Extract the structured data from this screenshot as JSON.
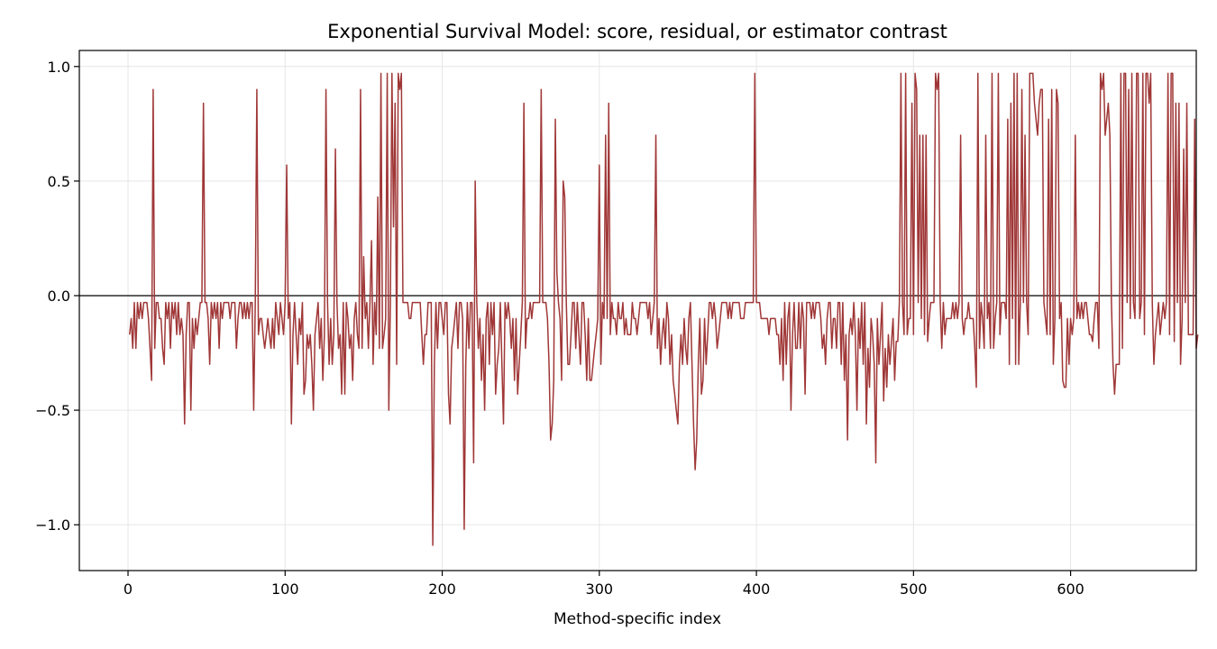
{
  "chart_data": {
    "type": "line",
    "title": "Exponential Survival Model: score, residual, or estimator contrast",
    "xlabel": "Method-specific index",
    "ylabel": "",
    "xlim": [
      -31,
      680
    ],
    "ylim": [
      -1.2,
      1.07
    ],
    "xticks": [
      0,
      100,
      200,
      300,
      400,
      500,
      600
    ],
    "xtick_labels": [
      "0",
      "100",
      "200",
      "300",
      "400",
      "500",
      "600"
    ],
    "yticks": [
      -1.0,
      -0.5,
      0.0,
      0.5,
      1.0
    ],
    "ytick_labels": [
      "−1.0",
      "−0.5",
      "0.0",
      "0.5",
      "1.0"
    ],
    "grid": true,
    "reference_line_y": 0.0,
    "line_color": "#a03737",
    "series": [
      {
        "x_start": 1,
        "values": [
          -0.17,
          -0.1,
          -0.23,
          -0.03,
          -0.23,
          -0.03,
          -0.1,
          -0.03,
          -0.1,
          -0.03,
          -0.03,
          -0.03,
          -0.1,
          -0.23,
          -0.37,
          0.9,
          -0.23,
          -0.03,
          -0.03,
          -0.1,
          -0.1,
          -0.23,
          -0.3,
          -0.03,
          -0.1,
          -0.03,
          -0.23,
          -0.03,
          -0.1,
          -0.03,
          -0.17,
          -0.03,
          -0.17,
          -0.1,
          -0.17,
          -0.56,
          -0.17,
          -0.03,
          -0.03,
          -0.5,
          -0.1,
          -0.23,
          -0.1,
          -0.17,
          -0.1,
          -0.03,
          -0.03,
          0.84,
          -0.03,
          -0.03,
          -0.1,
          -0.3,
          -0.03,
          -0.1,
          -0.03,
          -0.1,
          -0.03,
          -0.23,
          -0.03,
          -0.1,
          -0.03,
          -0.03,
          -0.03,
          -0.03,
          -0.1,
          -0.03,
          -0.03,
          -0.03,
          -0.23,
          -0.1,
          -0.03,
          -0.03,
          -0.1,
          -0.03,
          -0.1,
          -0.03,
          -0.1,
          -0.03,
          -0.03,
          -0.5,
          -0.03,
          0.9,
          -0.17,
          -0.1,
          -0.1,
          -0.17,
          -0.23,
          -0.17,
          -0.1,
          -0.17,
          -0.23,
          -0.1,
          -0.23,
          -0.03,
          -0.1,
          -0.17,
          -0.03,
          -0.1,
          -0.17,
          -0.03,
          0.57,
          -0.1,
          -0.03,
          -0.56,
          -0.17,
          -0.03,
          -0.17,
          -0.3,
          -0.1,
          -0.17,
          -0.03,
          -0.43,
          -0.37,
          -0.17,
          -0.23,
          -0.17,
          -0.3,
          -0.5,
          -0.17,
          -0.1,
          -0.03,
          -0.23,
          -0.1,
          -0.37,
          -0.17,
          0.9,
          -0.03,
          -0.3,
          -0.1,
          -0.3,
          -0.17,
          0.64,
          -0.03,
          -0.23,
          -0.17,
          -0.43,
          -0.03,
          -0.43,
          -0.03,
          -0.1,
          -0.23,
          -0.17,
          -0.37,
          -0.1,
          -0.03,
          -0.17,
          -0.23,
          0.9,
          -0.23,
          0.17,
          -0.1,
          -0.03,
          -0.23,
          -0.03,
          0.24,
          -0.3,
          -0.03,
          -0.17,
          0.43,
          -0.23,
          0.97,
          -0.23,
          -0.17,
          -0.1,
          0.97,
          -0.5,
          -0.03,
          0.97,
          0.3,
          0.84,
          -0.3,
          0.97,
          0.9,
          0.97,
          -0.03,
          -0.03,
          -0.03,
          -0.03,
          -0.1,
          -0.1,
          -0.03,
          -0.03,
          -0.03,
          -0.03,
          -0.03,
          -0.03,
          -0.17,
          -0.3,
          -0.17,
          -0.17,
          -0.03,
          -0.03,
          -0.03,
          -1.09,
          -0.3,
          -0.03,
          -0.23,
          -0.03,
          -0.03,
          -0.1,
          -0.17,
          -0.03,
          -0.03,
          -0.43,
          -0.56,
          -0.23,
          -0.17,
          -0.1,
          -0.03,
          -0.23,
          -0.03,
          -0.03,
          -0.1,
          -1.02,
          -0.3,
          -0.03,
          -0.23,
          -0.03,
          -0.03,
          -0.73,
          0.5,
          -0.03,
          -0.23,
          -0.1,
          -0.37,
          -0.17,
          -0.5,
          -0.1,
          -0.03,
          -0.3,
          -0.03,
          -0.17,
          -0.03,
          -0.43,
          -0.3,
          -0.23,
          -0.03,
          -0.3,
          -0.56,
          -0.03,
          -0.1,
          -0.03,
          -0.1,
          -0.23,
          -0.1,
          -0.37,
          -0.1,
          -0.43,
          -0.3,
          -0.17,
          -0.03,
          0.84,
          -0.23,
          -0.1,
          -0.1,
          -0.03,
          -0.1,
          -0.03,
          -0.03,
          -0.03,
          -0.03,
          -0.03,
          0.9,
          -0.03,
          -0.03,
          -0.03,
          -0.1,
          -0.3,
          -0.63,
          -0.56,
          -0.37,
          0.77,
          0.1,
          -0.03,
          -0.1,
          -0.37,
          0.5,
          0.43,
          -0.03,
          -0.3,
          -0.3,
          -0.17,
          -0.03,
          -0.03,
          -0.23,
          -0.03,
          -0.17,
          -0.3,
          -0.03,
          -0.03,
          -0.17,
          -0.37,
          -0.1,
          -0.37,
          -0.37,
          -0.3,
          -0.23,
          -0.17,
          -0.1,
          0.57,
          -0.3,
          -0.03,
          -0.1,
          0.7,
          -0.1,
          0.84,
          -0.17,
          -0.03,
          -0.1,
          -0.1,
          -0.17,
          -0.03,
          -0.1,
          -0.1,
          -0.03,
          -0.17,
          -0.1,
          -0.17,
          -0.17,
          -0.17,
          -0.03,
          -0.1,
          -0.1,
          -0.17,
          -0.1,
          -0.03,
          -0.03,
          -0.03,
          -0.03,
          -0.03,
          -0.1,
          -0.03,
          -0.17,
          -0.1,
          -0.03,
          0.7,
          -0.23,
          -0.1,
          -0.3,
          -0.17,
          -0.1,
          -0.23,
          -0.03,
          -0.1,
          -0.3,
          -0.17,
          -0.37,
          -0.43,
          -0.5,
          -0.56,
          -0.3,
          -0.17,
          -0.3,
          -0.1,
          -0.23,
          -0.3,
          -0.1,
          -0.03,
          -0.3,
          -0.56,
          -0.76,
          -0.63,
          -0.3,
          -0.1,
          -0.43,
          -0.37,
          -0.1,
          -0.3,
          -0.17,
          -0.03,
          -0.03,
          -0.1,
          -0.03,
          -0.1,
          -0.23,
          -0.17,
          -0.1,
          -0.03,
          -0.03,
          -0.03,
          -0.03,
          -0.1,
          -0.03,
          -0.1,
          -0.03,
          -0.03,
          -0.03,
          -0.03,
          -0.03,
          -0.1,
          -0.1,
          -0.1,
          -0.03,
          -0.03,
          -0.03,
          -0.03,
          -0.03,
          -0.03,
          0.97,
          -0.03,
          -0.03,
          -0.03,
          -0.1,
          -0.1,
          -0.1,
          -0.1,
          -0.1,
          -0.17,
          -0.1,
          -0.1,
          -0.1,
          -0.1,
          -0.17,
          -0.17,
          -0.3,
          -0.1,
          -0.37,
          -0.03,
          -0.3,
          -0.1,
          -0.03,
          -0.5,
          -0.17,
          -0.03,
          -0.23,
          -0.23,
          -0.03,
          -0.23,
          -0.03,
          -0.1,
          -0.43,
          -0.03,
          -0.03,
          -0.03,
          -0.1,
          -0.03,
          -0.1,
          -0.03,
          -0.03,
          -0.03,
          -0.1,
          -0.23,
          -0.17,
          -0.3,
          -0.1,
          -0.03,
          -0.03,
          -0.23,
          -0.1,
          -0.1,
          -0.23,
          -0.03,
          -0.03,
          -0.3,
          -0.03,
          -0.37,
          -0.17,
          -0.63,
          -0.17,
          -0.1,
          -0.17,
          -0.03,
          -0.17,
          -0.5,
          -0.1,
          -0.23,
          -0.03,
          -0.3,
          -0.03,
          -0.56,
          -0.23,
          -0.4,
          -0.1,
          -0.17,
          -0.3,
          -0.73,
          -0.1,
          -0.3,
          -0.17,
          -0.03,
          -0.46,
          -0.23,
          -0.4,
          -0.17,
          -0.3,
          -0.2,
          -0.1,
          -0.37,
          -0.2,
          -0.2,
          -0.03,
          0.97,
          -0.03,
          -0.17,
          0.97,
          -0.17,
          -0.1,
          -0.1,
          0.84,
          -0.17,
          0.97,
          0.9,
          -0.03,
          0.7,
          -0.1,
          0.7,
          -0.17,
          0.7,
          -0.2,
          -0.1,
          -0.03,
          -0.03,
          -0.03,
          0.97,
          0.9,
          0.97,
          -0.03,
          -0.23,
          -0.03,
          -0.17,
          -0.1,
          -0.1,
          -0.1,
          -0.1,
          -0.03,
          -0.1,
          -0.03,
          -0.1,
          -0.03,
          0.7,
          -0.1,
          -0.17,
          -0.1,
          -0.1,
          -0.03,
          -0.1,
          -0.1,
          -0.1,
          -0.23,
          -0.4,
          0.97,
          -0.23,
          -0.03,
          -0.1,
          -0.23,
          0.7,
          -0.1,
          -0.03,
          -0.23,
          0.97,
          -0.23,
          -0.1,
          -0.03,
          0.97,
          -0.17,
          -0.03,
          -0.03,
          -0.03,
          -0.1,
          0.77,
          -0.3,
          0.84,
          -0.1,
          0.97,
          -0.3,
          0.97,
          -0.3,
          -0.03,
          0.9,
          -0.03,
          0.7,
          -0.03,
          -0.17,
          0.97,
          0.97,
          0.97,
          0.84,
          0.77,
          0.7,
          0.84,
          0.9,
          0.9,
          -0.03,
          -0.1,
          -0.17,
          0.77,
          -0.17,
          0.9,
          -0.3,
          -0.1,
          0.9,
          0.84,
          -0.1,
          -0.03,
          -0.37,
          -0.4,
          -0.4,
          -0.1,
          -0.3,
          -0.1,
          -0.17,
          -0.1,
          0.7,
          -0.1,
          -0.03,
          -0.1,
          -0.03,
          -0.1,
          -0.03,
          -0.03,
          -0.1,
          -0.17,
          -0.17,
          -0.2,
          -0.1,
          -0.03,
          -0.03,
          -0.23,
          0.97,
          0.9,
          0.97,
          0.7,
          0.77,
          0.84,
          0.7,
          -0.03,
          -0.3,
          -0.43,
          -0.3,
          -0.3,
          -0.3,
          0.97,
          -0.23,
          0.97,
          0.97,
          -0.03,
          0.9,
          -0.1,
          0.97,
          -0.03,
          -0.1,
          0.97,
          0.97,
          -0.1,
          -0.03,
          0.97,
          -0.17,
          0.97,
          0.97,
          0.84,
          0.97,
          -0.03,
          -0.3,
          -0.17,
          -0.1,
          -0.03,
          -0.17,
          -0.1,
          -0.03,
          -0.1,
          -0.03,
          0.97,
          -0.17,
          0.97,
          0.97,
          -0.2,
          0.84,
          -0.03,
          0.84,
          -0.3,
          -0.1,
          0.64,
          -0.03,
          0.84,
          -0.17,
          -0.17,
          -0.17,
          -0.17,
          0.77,
          -0.23,
          -0.17
        ]
      }
    ]
  }
}
